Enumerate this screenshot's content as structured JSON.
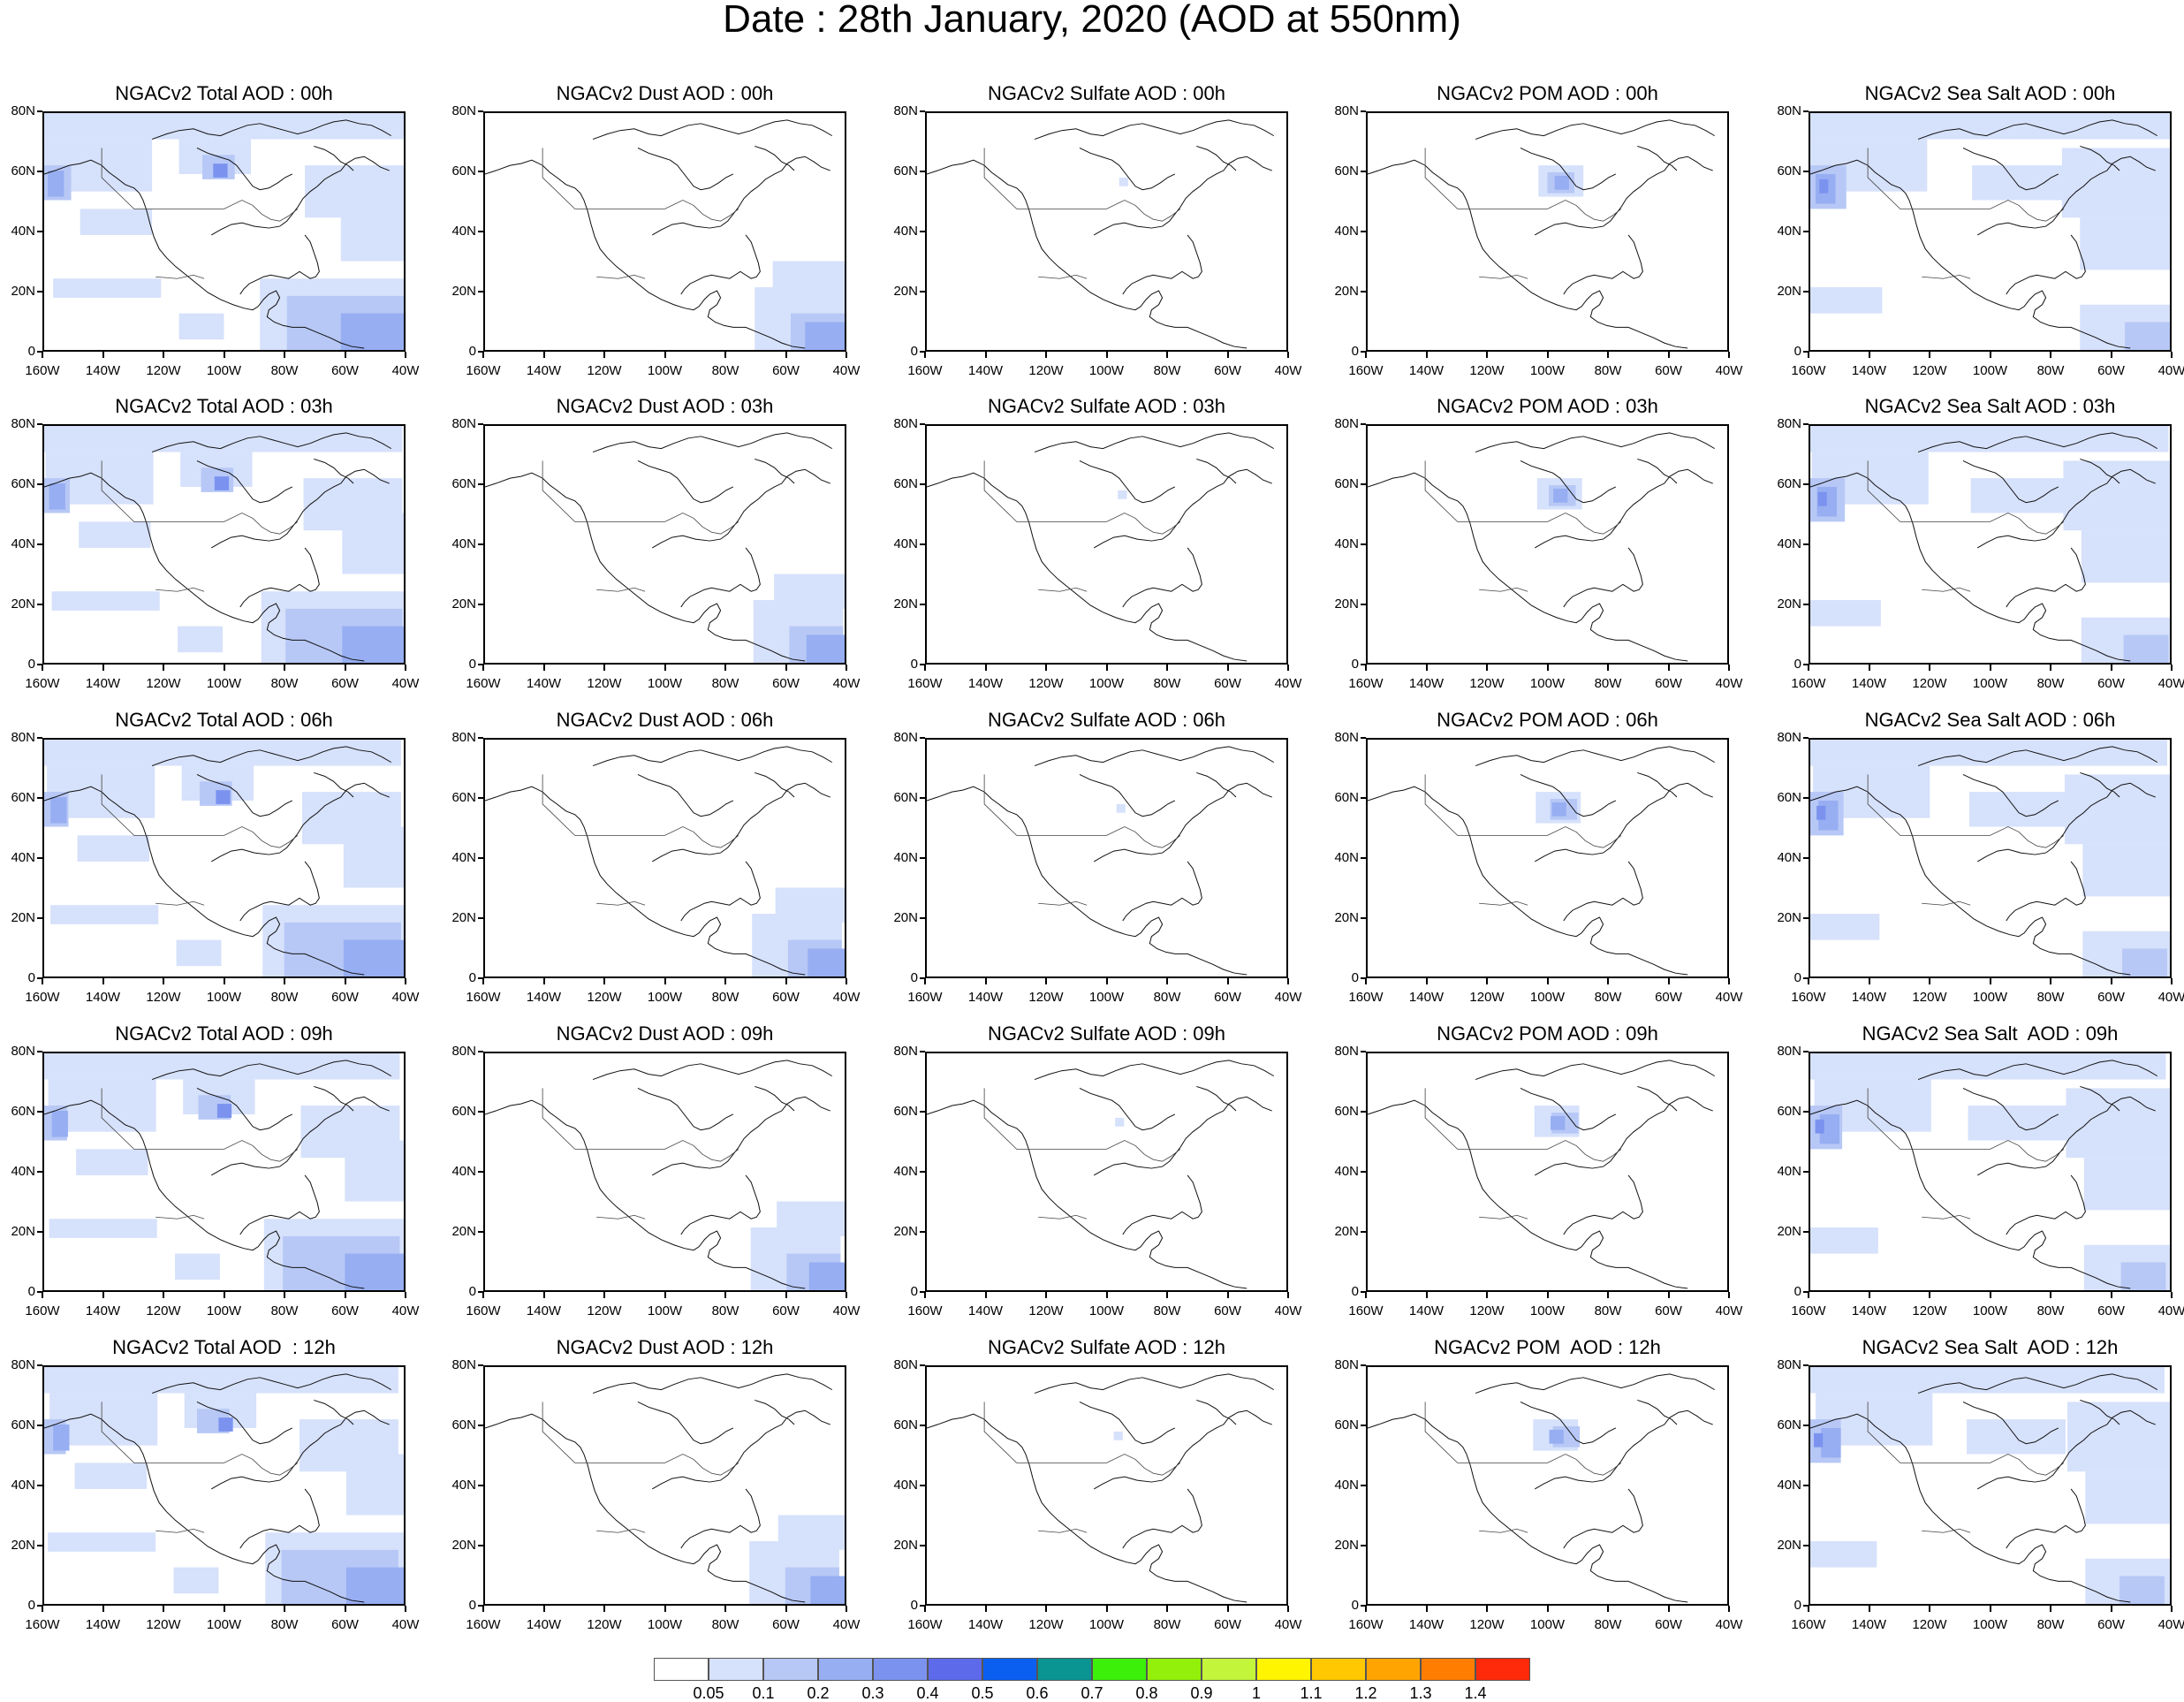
{
  "title": "Date : 28th January, 2020 (AOD at 550nm)",
  "panels": [
    [
      "NGACv2 Total AOD : 00h",
      "NGACv2 Dust AOD : 00h",
      "NGACv2 Sulfate AOD : 00h",
      "NGACv2 POM AOD : 00h",
      "NGACv2 Sea Salt AOD : 00h"
    ],
    [
      "NGACv2 Total AOD : 03h",
      "NGACv2 Dust AOD : 03h",
      "NGACv2 Sulfate AOD : 03h",
      "NGACv2 POM AOD : 03h",
      "NGACv2 Sea Salt AOD : 03h"
    ],
    [
      "NGACv2 Total AOD : 06h",
      "NGACv2 Dust AOD : 06h",
      "NGACv2 Sulfate AOD : 06h",
      "NGACv2 POM AOD : 06h",
      "NGACv2 Sea Salt AOD : 06h"
    ],
    [
      "NGACv2 Total AOD : 09h",
      "NGACv2 Dust AOD : 09h",
      "NGACv2 Sulfate AOD : 09h",
      "NGACv2 POM AOD : 09h",
      "NGACv2 Sea Salt  AOD : 09h"
    ],
    [
      "NGACv2 Total AOD  : 12h",
      "NGACv2 Dust AOD : 12h",
      "NGACv2 Sulfate AOD : 12h",
      "NGACv2 POM  AOD : 12h",
      "NGACv2 Sea Salt  AOD : 12h"
    ]
  ],
  "species": [
    "total",
    "dust",
    "sulfate",
    "pom",
    "seasalt"
  ],
  "y_ticks": [
    "80N",
    "60N",
    "40N",
    "20N",
    "0"
  ],
  "x_ticks": [
    "160W",
    "140W",
    "120W",
    "100W",
    "80W",
    "60W",
    "40W"
  ],
  "colorbar": {
    "colors": [
      "#ffffff",
      "#d6e1fb",
      "#b7c8f6",
      "#97aef2",
      "#7b93ef",
      "#5d6ae9",
      "#0a5ff0",
      "#0a9592",
      "#3cf00a",
      "#93f00a",
      "#c3f53a",
      "#fff500",
      "#ffc800",
      "#ffa400",
      "#ff7d00",
      "#ff2a0a"
    ],
    "labels": [
      "0.05",
      "0.1",
      "0.2",
      "0.3",
      "0.4",
      "0.5",
      "0.6",
      "0.7",
      "0.8",
      "0.9",
      "1",
      "1.1",
      "1.2",
      "1.3",
      "1.4"
    ]
  }
}
